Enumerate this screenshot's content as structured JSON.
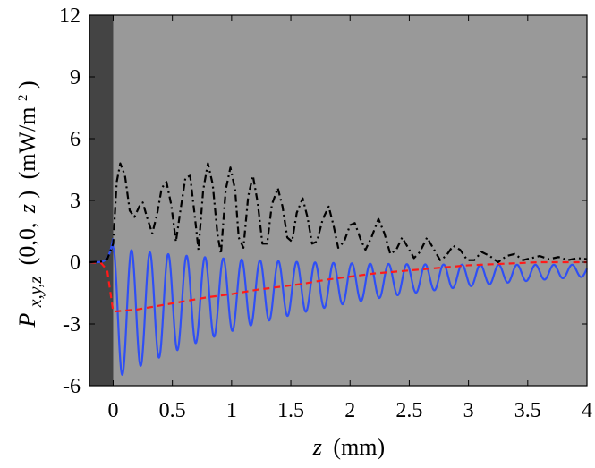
{
  "chart_data": {
    "type": "line",
    "xlabel_var": "z",
    "xlabel_unit": "(mm)",
    "ylabel_var": "P",
    "ylabel_sub": "x,y,z",
    "ylabel_args_a": "(0,0,",
    "ylabel_args_b": "z",
    "ylabel_args_c": ")",
    "ylabel_unit_a": "(mW/m",
    "ylabel_unit_sup": "2",
    "ylabel_unit_b": ")",
    "xlim": [
      -0.2,
      4
    ],
    "ylim": [
      -6,
      12
    ],
    "x_ticks": [
      0,
      0.5,
      1,
      1.5,
      2,
      2.5,
      3,
      3.5,
      4
    ],
    "x_tick_labels": [
      "0",
      "0.5",
      "1",
      "1.5",
      "2",
      "2.5",
      "3",
      "3.5",
      "4"
    ],
    "y_ticks": [
      -6,
      -3,
      0,
      3,
      6,
      9,
      12
    ],
    "y_tick_labels": [
      "-6",
      "-3",
      "0",
      "3",
      "6",
      "9",
      "12"
    ],
    "grid": false,
    "background": {
      "shaded_region_x": [
        -0.2,
        0
      ],
      "shaded_color": "#444444",
      "plot_color": "#999999"
    },
    "series": [
      {
        "color": "#000000",
        "style": "dash-dot",
        "points": [
          [
            -0.2,
            0
          ],
          [
            -0.1,
            0.03
          ],
          [
            -0.05,
            0.15
          ],
          [
            0,
            0.9
          ],
          [
            0.03,
            3.9
          ],
          [
            0.06,
            4.8
          ],
          [
            0.1,
            4.2
          ],
          [
            0.14,
            2.5
          ],
          [
            0.18,
            2.2
          ],
          [
            0.22,
            2.7
          ],
          [
            0.25,
            2.9
          ],
          [
            0.29,
            2.1
          ],
          [
            0.33,
            1.4
          ],
          [
            0.37,
            2.3
          ],
          [
            0.41,
            3.6
          ],
          [
            0.45,
            3.9
          ],
          [
            0.49,
            2.8
          ],
          [
            0.53,
            1.0
          ],
          [
            0.57,
            2.6
          ],
          [
            0.61,
            4.1
          ],
          [
            0.65,
            4.2
          ],
          [
            0.69,
            2.2
          ],
          [
            0.72,
            0.6
          ],
          [
            0.76,
            3.5
          ],
          [
            0.8,
            4.8
          ],
          [
            0.84,
            3.8
          ],
          [
            0.88,
            1.4
          ],
          [
            0.91,
            0.4
          ],
          [
            0.95,
            3.5
          ],
          [
            0.99,
            4.6
          ],
          [
            1.03,
            3.5
          ],
          [
            1.06,
            1.2
          ],
          [
            1.1,
            0.7
          ],
          [
            1.14,
            3.2
          ],
          [
            1.18,
            4.2
          ],
          [
            1.22,
            2.9
          ],
          [
            1.26,
            0.9
          ],
          [
            1.3,
            0.9
          ],
          [
            1.34,
            2.8
          ],
          [
            1.39,
            3.6
          ],
          [
            1.43,
            2.7
          ],
          [
            1.47,
            1.2
          ],
          [
            1.51,
            1.0
          ],
          [
            1.55,
            2.4
          ],
          [
            1.6,
            3.1
          ],
          [
            1.64,
            2.2
          ],
          [
            1.68,
            0.9
          ],
          [
            1.72,
            1.0
          ],
          [
            1.77,
            2.1
          ],
          [
            1.82,
            2.7
          ],
          [
            1.86,
            1.8
          ],
          [
            1.9,
            0.7
          ],
          [
            1.95,
            1.0
          ],
          [
            2,
            1.8
          ],
          [
            2.04,
            1.9
          ],
          [
            2.09,
            1.1
          ],
          [
            2.13,
            0.6
          ],
          [
            2.18,
            1.2
          ],
          [
            2.24,
            2.1
          ],
          [
            2.29,
            1.4
          ],
          [
            2.34,
            0.4
          ],
          [
            2.39,
            0.6
          ],
          [
            2.44,
            1.2
          ],
          [
            2.49,
            0.7
          ],
          [
            2.54,
            0.2
          ],
          [
            2.59,
            0.5
          ],
          [
            2.65,
            1.2
          ],
          [
            2.7,
            0.7
          ],
          [
            2.76,
            0.1
          ],
          [
            2.81,
            0.3
          ],
          [
            2.87,
            0.8
          ],
          [
            2.93,
            0.6
          ],
          [
            2.99,
            0.1
          ],
          [
            3.05,
            0.1
          ],
          [
            3.11,
            0.5
          ],
          [
            3.18,
            0.3
          ],
          [
            3.25,
            0
          ],
          [
            3.32,
            0.3
          ],
          [
            3.39,
            0.4
          ],
          [
            3.46,
            0.1
          ],
          [
            3.53,
            0.2
          ],
          [
            3.6,
            0.3
          ],
          [
            3.68,
            0.15
          ],
          [
            3.76,
            0.25
          ],
          [
            3.84,
            0.1
          ],
          [
            3.92,
            0.2
          ],
          [
            4,
            0.15
          ]
        ]
      },
      {
        "color": "#ff1a1a",
        "style": "dashed",
        "points": [
          [
            -0.2,
            0
          ],
          [
            -0.1,
            -0.05
          ],
          [
            -0.05,
            -0.4
          ],
          [
            0,
            -2.4
          ],
          [
            0.2,
            -2.3
          ],
          [
            0.4,
            -2.1
          ],
          [
            0.6,
            -1.9
          ],
          [
            0.8,
            -1.7
          ],
          [
            1,
            -1.55
          ],
          [
            1.2,
            -1.35
          ],
          [
            1.4,
            -1.2
          ],
          [
            1.6,
            -1.05
          ],
          [
            1.8,
            -0.85
          ],
          [
            2,
            -0.7
          ],
          [
            2.2,
            -0.55
          ],
          [
            2.4,
            -0.45
          ],
          [
            2.6,
            -0.35
          ],
          [
            2.8,
            -0.25
          ],
          [
            3,
            -0.15
          ],
          [
            3.2,
            -0.1
          ],
          [
            3.4,
            -0.05
          ],
          [
            3.6,
            0
          ],
          [
            3.8,
            0
          ],
          [
            4,
            0
          ]
        ]
      },
      {
        "color": "#2f4ff5",
        "style": "solid",
        "equation": "y = -2.5*e^(-0.45z) + 3.2*e^(-0.6z)*cos(2πz/0.155)",
        "points": []
      }
    ]
  }
}
